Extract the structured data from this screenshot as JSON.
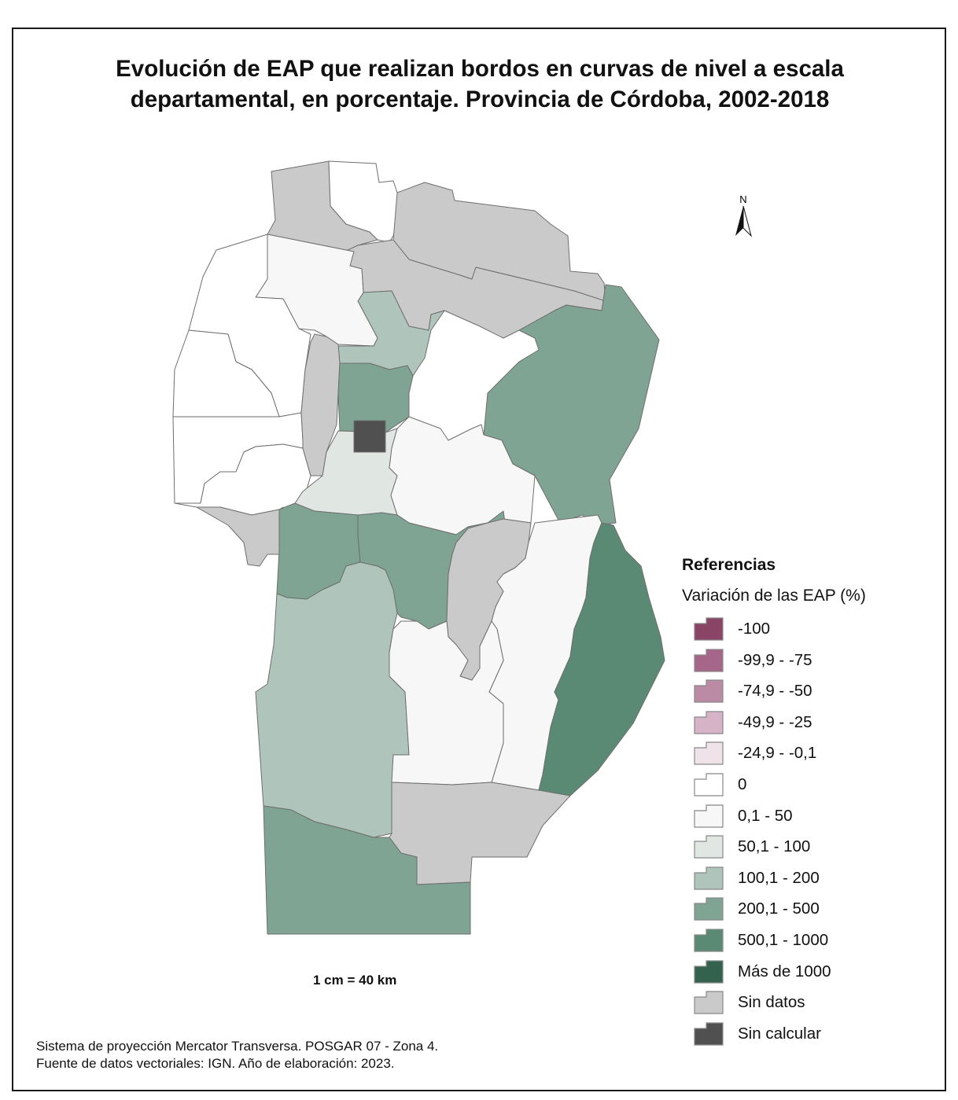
{
  "title": "Evolución de EAP que realizan bordos en curvas de nivel a escala departamental, en porcentaje. Provincia de Córdoba, 2002-2018",
  "north_arrow": {
    "label": "N"
  },
  "legend": {
    "heading": "Referencias",
    "subtitle": "Variación de las EAP (%)",
    "items": [
      {
        "key": "c_m100",
        "label": "-100",
        "color": "#8a4466"
      },
      {
        "key": "c_m75",
        "label": "-99,9 - -75",
        "color": "#a5668a"
      },
      {
        "key": "c_m50",
        "label": "-74,9 - -50",
        "color": "#bb8ba5"
      },
      {
        "key": "c_m25",
        "label": "-49,9 - -25",
        "color": "#d6b3c7"
      },
      {
        "key": "c_m0",
        "label": "-24,9 - -0,1",
        "color": "#efe2e8"
      },
      {
        "key": "c_0",
        "label": "0",
        "color": "#ffffff"
      },
      {
        "key": "c_50",
        "label": "0,1 - 50",
        "color": "#f6f7f6"
      },
      {
        "key": "c_100",
        "label": "50,1 - 100",
        "color": "#e0e7e3"
      },
      {
        "key": "c_200",
        "label": "100,1 - 200",
        "color": "#afc5bb"
      },
      {
        "key": "c_500",
        "label": "200,1 - 500",
        "color": "#80a493"
      },
      {
        "key": "c_1000",
        "label": "500,1 - 1000",
        "color": "#5b8a74"
      },
      {
        "key": "c_more",
        "label": "Más de 1000",
        "color": "#33634f"
      },
      {
        "key": "c_nd",
        "label": "Sin datos",
        "color": "#cacaca"
      },
      {
        "key": "c_nc",
        "label": "Sin calcular",
        "color": "#505050"
      }
    ]
  },
  "scale": "1 cm = 40 km",
  "footer": {
    "line1": "Sistema de proyección Mercator Transversa. POSGAR 07 - Zona 4.",
    "line2": "Fuente de datos vectoriales: IGN. Año de elaboración: 2023."
  }
}
